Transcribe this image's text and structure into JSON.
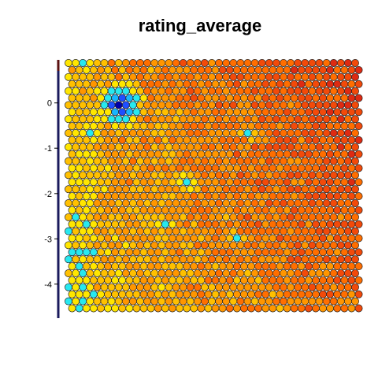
{
  "chart_data": {
    "type": "heatmap",
    "subtype": "hexagonal-som-map",
    "title": "rating_average",
    "xlabel": "",
    "ylabel": "",
    "grid": false,
    "legend": "none",
    "y_ticks": [
      0,
      -1,
      -2,
      -3,
      -4
    ],
    "y_tick_labels": [
      "0",
      "-1",
      "-2",
      "-3",
      "-4"
    ],
    "ylim": [
      -4.75,
      0.95
    ],
    "rows": 36,
    "cols": 41,
    "palette": [
      "#0000aa",
      "#1f4fff",
      "#19b5ff",
      "#27e8ef",
      "#ffe600",
      "#ffc000",
      "#ff9600",
      "#ff6e00",
      "#f24a0a",
      "#de2a12"
    ],
    "value_range": [
      0,
      1
    ],
    "hotspots": [
      {
        "region": "upper-left",
        "row": 6,
        "col": 7,
        "value": 0.0,
        "spread": 2.6
      },
      {
        "region": "upper-left-top",
        "row": 0,
        "col": 2,
        "value": 0.32,
        "spread": 1.0
      },
      {
        "region": "left",
        "row": 10,
        "col": 3,
        "value": 0.35,
        "spread": 1.2
      },
      {
        "region": "left-mid",
        "row": 15,
        "col": 5,
        "value": 0.4,
        "spread": 0.8
      },
      {
        "region": "center",
        "row": 17,
        "col": 16,
        "value": 0.3,
        "spread": 1.3
      },
      {
        "region": "right-upper",
        "row": 10,
        "col": 25,
        "value": 0.35,
        "spread": 1.0
      },
      {
        "region": "center-lower",
        "row": 23,
        "col": 13,
        "value": 0.35,
        "spread": 1.0
      },
      {
        "region": "right-lower",
        "row": 25,
        "col": 23,
        "value": 0.38,
        "spread": 0.9
      },
      {
        "region": "bottom-left",
        "row": 31,
        "col": 6,
        "value": 0.4,
        "spread": 0.8
      }
    ],
    "gradient": "values rise from warm orange on the left and bottom toward deep red on the right"
  }
}
